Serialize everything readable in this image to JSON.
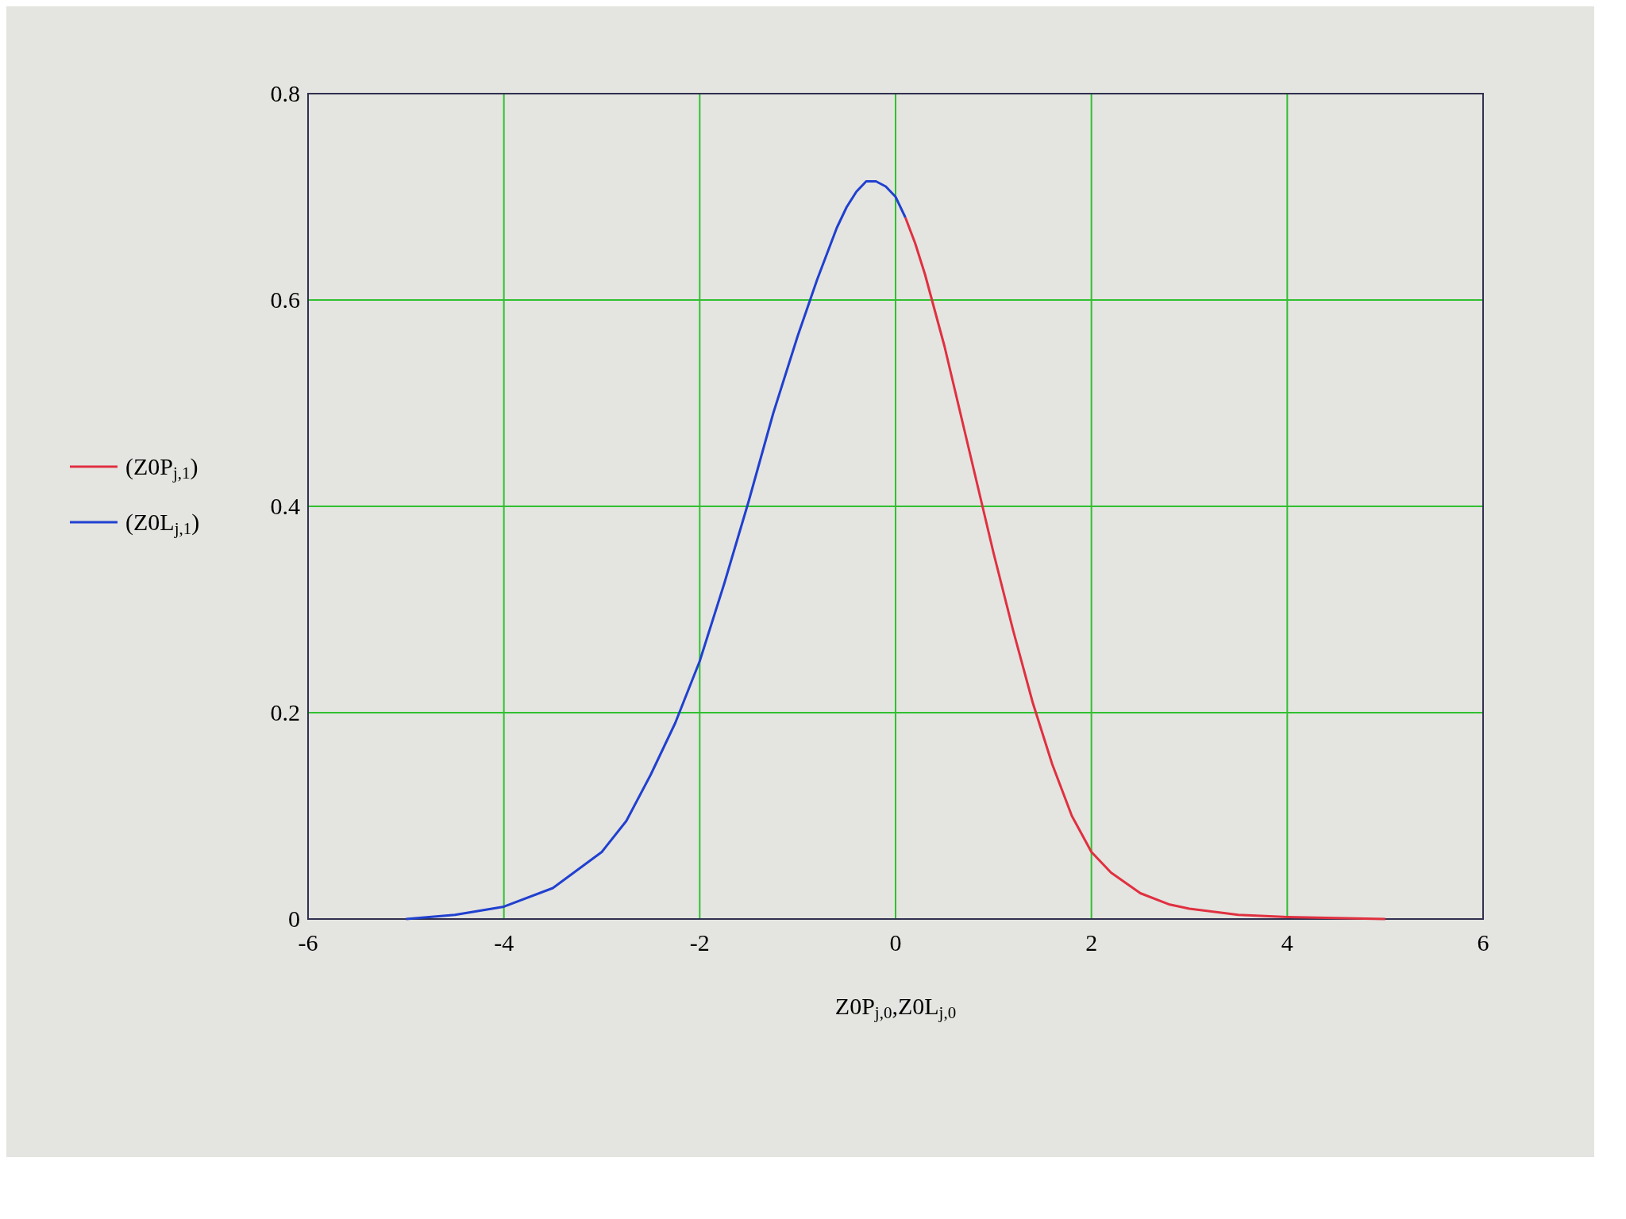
{
  "chart_data": {
    "type": "line",
    "xlabel": "Z0P$_{j,0}$,Z0L$_{j,0}$",
    "xlim": [
      -6,
      6
    ],
    "ylim": [
      0,
      0.8
    ],
    "xticks": [
      -6,
      -4,
      -2,
      0,
      2,
      4,
      6
    ],
    "yticks": [
      0,
      0.2,
      0.4,
      0.6,
      0.8
    ],
    "grid": true,
    "legend": "left",
    "line_style": "solid",
    "marker": "none",
    "series": [
      {
        "name": "(Z0P$_{j,1}$)",
        "color": "#e03040",
        "x": [
          0.1,
          0.2,
          0.3,
          0.4,
          0.5,
          0.6,
          0.7,
          0.8,
          0.9,
          1.0,
          1.2,
          1.4,
          1.6,
          1.8,
          2.0,
          2.2,
          2.5,
          2.8,
          3.0,
          3.5,
          4.0,
          4.5,
          5.0
        ],
        "values": [
          0.68,
          0.655,
          0.625,
          0.59,
          0.555,
          0.515,
          0.475,
          0.435,
          0.395,
          0.355,
          0.28,
          0.21,
          0.15,
          0.1,
          0.065,
          0.045,
          0.025,
          0.014,
          0.01,
          0.004,
          0.002,
          0.001,
          0
        ]
      },
      {
        "name": "(Z0L$_{j,1}$)",
        "color": "#2040d0",
        "x": [
          -5.0,
          -4.5,
          -4.0,
          -3.5,
          -3.0,
          -2.75,
          -2.5,
          -2.25,
          -2.0,
          -1.75,
          -1.5,
          -1.25,
          -1.0,
          -0.8,
          -0.6,
          -0.5,
          -0.4,
          -0.3,
          -0.2,
          -0.1,
          0,
          0.1
        ],
        "values": [
          0,
          0.004,
          0.012,
          0.03,
          0.065,
          0.095,
          0.14,
          0.19,
          0.25,
          0.325,
          0.405,
          0.49,
          0.565,
          0.62,
          0.67,
          0.69,
          0.705,
          0.715,
          0.715,
          0.71,
          0.7,
          0.68
        ]
      }
    ]
  }
}
